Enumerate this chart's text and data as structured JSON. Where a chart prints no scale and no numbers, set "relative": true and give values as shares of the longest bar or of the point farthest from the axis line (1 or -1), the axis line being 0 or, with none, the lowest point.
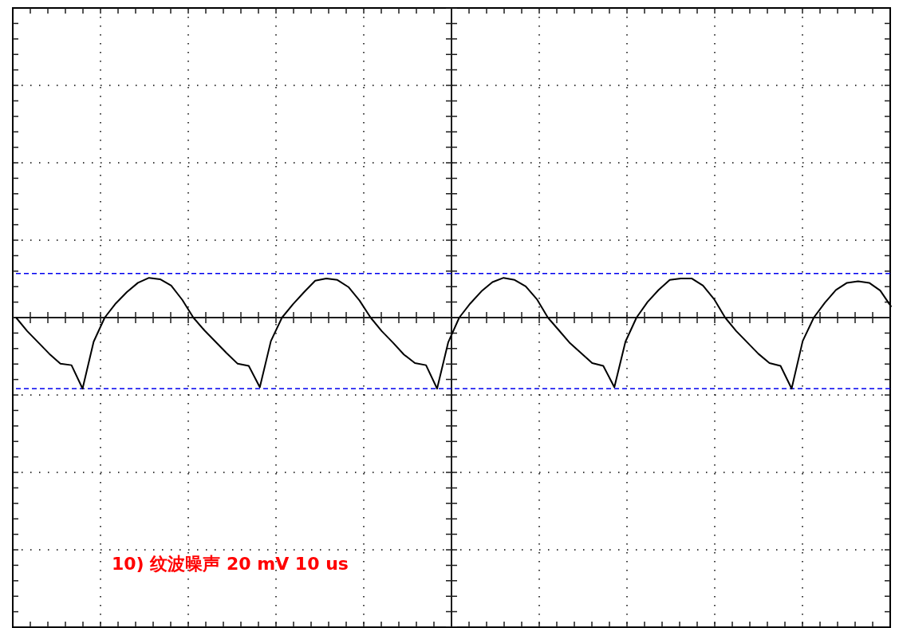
{
  "chart_data": {
    "type": "line",
    "relative": true,
    "categories": [
      null,
      null,
      null,
      null,
      null,
      null,
      null,
      null,
      null,
      null,
      null,
      null,
      null,
      null,
      null,
      null,
      null,
      null,
      null,
      null,
      null,
      null,
      null,
      null,
      null,
      null,
      null,
      null,
      null,
      null,
      null,
      null,
      null,
      null,
      null,
      null,
      null,
      null,
      null,
      null,
      null,
      null,
      null,
      null,
      null,
      null,
      null,
      null,
      null,
      null,
      null,
      null,
      null,
      null,
      null,
      null,
      null,
      null,
      null,
      null,
      null,
      null,
      null,
      null,
      null,
      null,
      null,
      null,
      null,
      null,
      null,
      null,
      null,
      null,
      null,
      null,
      null,
      null,
      null,
      null
    ],
    "values": [
      0,
      -0.19,
      -0.35,
      -0.51,
      -0.65,
      -0.67,
      -1,
      -0.34,
      0,
      0.2,
      0.36,
      0.49,
      0.56,
      0.54,
      0.45,
      0.25,
      0,
      -0.18,
      -0.34,
      -0.5,
      -0.65,
      -0.68,
      -0.98,
      -0.33,
      0,
      0.19,
      0.36,
      0.52,
      0.55,
      0.53,
      0.43,
      0.24,
      0,
      -0.19,
      -0.35,
      -0.52,
      -0.64,
      -0.67,
      -1,
      -0.35,
      0,
      0.2,
      0.37,
      0.5,
      0.56,
      0.53,
      0.44,
      0.26,
      0,
      -0.18,
      -0.36,
      -0.5,
      -0.64,
      -0.68,
      -0.98,
      -0.34,
      0,
      0.22,
      0.39,
      0.53,
      0.55,
      0.55,
      0.45,
      0.26,
      0,
      -0.19,
      -0.35,
      -0.51,
      -0.64,
      -0.68,
      -1,
      -0.33,
      0,
      0.21,
      0.39,
      0.49,
      0.51,
      0.49,
      0.38,
      0.15
    ],
    "color": "#000000",
    "marker": "none",
    "line_style": "solid",
    "grid": true,
    "ref_lines": [
      {
        "axis": "y",
        "value": 0.62,
        "color": "#0000ee",
        "line_style": "dashed"
      },
      {
        "axis": "y",
        "value": -1.0,
        "color": "#0000ee",
        "line_style": "dashed"
      }
    ],
    "annotations": [
      "10) 纹波噪声  20 mV    10 us"
    ]
  }
}
